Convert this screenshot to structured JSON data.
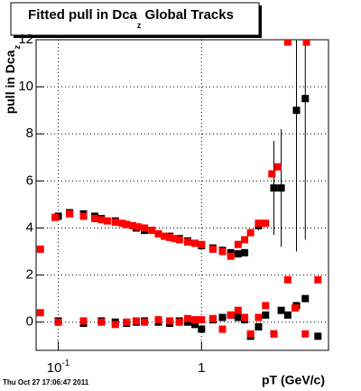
{
  "chart_data": {
    "type": "scatter",
    "title": "Fitted pull in Dca",
    "title_subscript": "z",
    "title_suffix": " Global Tracks",
    "y_label": "pull in Dca",
    "y_label_subscript": "z",
    "x_label": "pT (GeV/c)",
    "timestamp": "Thu Oct 27 17:06:47 2011",
    "x_log": true,
    "grid": true,
    "xlim": [
      0.07,
      7.7
    ],
    "ylim": [
      -1.2,
      12
    ],
    "xticks": [
      {
        "value": 0.1,
        "label": "10",
        "exponent": "-1"
      },
      1
    ],
    "yticks": [
      0,
      2,
      4,
      6,
      8,
      10,
      12
    ],
    "series": [
      {
        "color": "#000000",
        "x": [
          0.1,
          0.12,
          0.15,
          0.18,
          0.2,
          0.25,
          0.3,
          0.35,
          0.4,
          0.5,
          0.6,
          0.7,
          0.8,
          0.9,
          1.0,
          1.2,
          1.4,
          1.6,
          1.8,
          2.0,
          2.5,
          3.2,
          3.6,
          4.6,
          5.3
        ],
        "values": [
          4.5,
          4.65,
          4.6,
          4.5,
          4.4,
          4.3,
          4.15,
          4.0,
          3.9,
          3.75,
          3.65,
          3.55,
          3.45,
          3.35,
          3.25,
          3.15,
          3.05,
          2.95,
          2.9,
          2.95,
          4.1,
          5.7,
          5.7,
          9.0,
          9.5
        ],
        "errors": [
          0.05,
          0.05,
          0.05,
          0.05,
          0.05,
          0.05,
          0.05,
          0.05,
          0.05,
          0.05,
          0.05,
          0.05,
          0.05,
          0.05,
          0.05,
          0.05,
          0.05,
          0.05,
          0.05,
          0.05,
          0.2,
          2,
          2.5,
          6,
          6
        ]
      },
      {
        "color": "#ff0000",
        "x": [
          0.075,
          0.095,
          0.12,
          0.15,
          0.18,
          0.2,
          0.22,
          0.25,
          0.28,
          0.3,
          0.33,
          0.36,
          0.4,
          0.45,
          0.5,
          0.55,
          0.6,
          0.65,
          0.7,
          0.8,
          0.9,
          1.0,
          1.2,
          1.4,
          1.6,
          1.8,
          2.0,
          2.2,
          2.5,
          2.8,
          3.1,
          3.4,
          4.0,
          5.4
        ],
        "values": [
          3.1,
          4.45,
          4.6,
          4.5,
          4.4,
          4.35,
          4.3,
          4.25,
          4.2,
          4.15,
          4.1,
          4.05,
          4.0,
          3.9,
          3.75,
          3.65,
          3.6,
          3.55,
          3.5,
          3.4,
          3.35,
          3.3,
          3.1,
          3.0,
          2.8,
          3.3,
          3.5,
          3.8,
          4.2,
          4.2,
          6.3,
          6.6,
          11.9,
          11.9
        ]
      },
      {
        "color": "#000000",
        "x": [
          0.1,
          0.15,
          0.2,
          0.25,
          0.3,
          0.35,
          0.4,
          0.5,
          0.6,
          0.7,
          0.8,
          0.9,
          1.0,
          1.2,
          1.4,
          1.6,
          1.8,
          2.0,
          2.2,
          2.5,
          2.8,
          3.2,
          3.6,
          4.0,
          4.6,
          5.3,
          6.5
        ],
        "values": [
          0.05,
          -0.05,
          0.05,
          0,
          -0.05,
          0,
          0.05,
          0,
          -0.05,
          0.05,
          0,
          -0.1,
          -0.3,
          0.1,
          0.2,
          0.3,
          0.2,
          0.1,
          -0.6,
          -0.2,
          0.3,
          -0.5,
          0.5,
          0.3,
          0.7,
          1.0,
          -0.6
        ]
      },
      {
        "color": "#ff0000",
        "x": [
          0.075,
          0.1,
          0.15,
          0.2,
          0.25,
          0.3,
          0.35,
          0.4,
          0.5,
          0.6,
          0.7,
          0.8,
          0.9,
          1.0,
          1.2,
          1.4,
          1.6,
          1.8,
          2.0,
          2.2,
          2.5,
          2.8,
          3.2,
          4.0,
          4.5,
          5.3,
          6.5
        ],
        "values": [
          0.4,
          0,
          0.05,
          0,
          -0.1,
          0,
          0.05,
          0,
          0.1,
          0.05,
          0,
          0.15,
          0.1,
          0.1,
          0.15,
          -0.3,
          0.3,
          0.5,
          0.2,
          -0.5,
          0.2,
          0.7,
          -0.5,
          1.8,
          0.6,
          -0.5,
          1.8
        ]
      }
    ]
  }
}
